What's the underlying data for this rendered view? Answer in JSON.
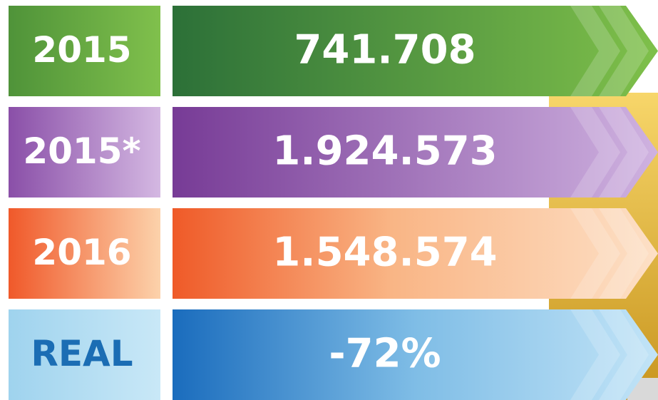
{
  "rows": [
    {
      "label": "2015",
      "value": "741.708"
    },
    {
      "label": "2015*",
      "value": "1.924.573"
    },
    {
      "label": "2016",
      "value": "1.548.574"
    },
    {
      "label": "REAL",
      "value": "-72%"
    }
  ]
}
